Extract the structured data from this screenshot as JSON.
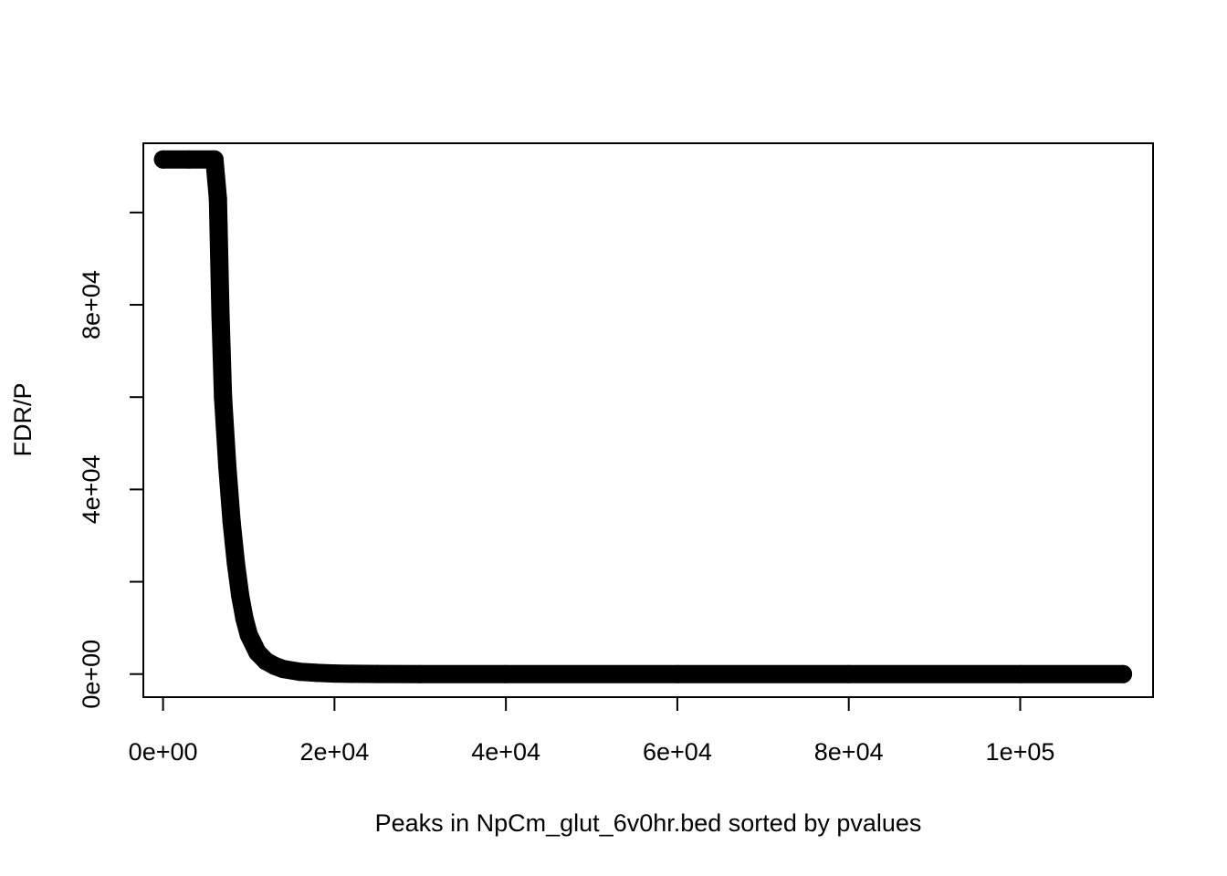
{
  "chart_data": {
    "type": "scatter",
    "title": "",
    "xlabel": "Peaks in NpCm_glut_6v0hr.bed sorted by pvalues",
    "ylabel": "FDR/P",
    "xlim": [
      -2300,
      115500
    ],
    "ylim": [
      -5000,
      115000
    ],
    "x_ticks": [
      0,
      20000,
      40000,
      60000,
      80000,
      100000
    ],
    "x_tick_labels": [
      "0e+00",
      "2e+04",
      "4e+04",
      "6e+04",
      "8e+04",
      "1e+05"
    ],
    "y_ticks": [
      0,
      20000,
      40000,
      60000,
      80000,
      100000
    ],
    "y_tick_labels": [
      "0e+00",
      "",
      "4e+04",
      "",
      "8e+04",
      ""
    ],
    "grid": false,
    "legend": "none",
    "series_color": "#000000",
    "series": [
      {
        "x": [
          0,
          3000,
          6000,
          6400,
          6700,
          7000,
          7500,
          8000,
          8500,
          9000,
          9500,
          10000,
          11000,
          12000,
          13000,
          14000,
          16000,
          18000,
          20000,
          22000,
          25000,
          30000,
          40000,
          60000,
          80000,
          100000,
          112000
        ],
        "y": [
          111500,
          111500,
          111500,
          103000,
          78000,
          60000,
          45000,
          33000,
          24000,
          17000,
          12000,
          8500,
          4700,
          2800,
          1800,
          1100,
          500,
          250,
          120,
          60,
          30,
          10,
          5,
          2,
          1,
          1,
          0
        ]
      }
    ]
  }
}
